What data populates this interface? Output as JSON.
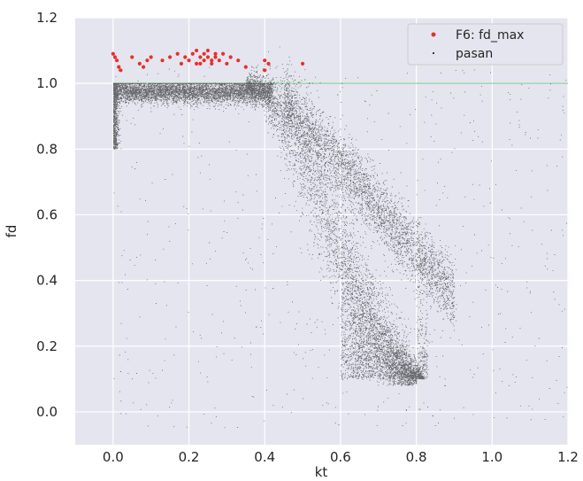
{
  "chart_data": {
    "type": "scatter",
    "title": "",
    "xlabel": "kt",
    "ylabel": "fd",
    "xlim": [
      -0.1,
      1.2
    ],
    "ylim": [
      -0.1,
      1.2
    ],
    "xticks": [
      "0.0",
      "0.2",
      "0.4",
      "0.6",
      "0.8",
      "1.0",
      "1.2"
    ],
    "xtick_values": [
      0.0,
      0.2,
      0.4,
      0.6,
      0.8,
      1.0,
      1.2
    ],
    "yticks": [
      "0.0",
      "0.2",
      "0.4",
      "0.6",
      "0.8",
      "1.0",
      "1.2"
    ],
    "ytick_values": [
      0.0,
      0.2,
      0.4,
      0.6,
      0.8,
      1.0,
      1.2
    ],
    "grid": true,
    "background": "#e5e5ef",
    "legend_position": "top-right",
    "reference_line": {
      "y": 1.0,
      "color": "#6fcf7f"
    },
    "series": [
      {
        "name": "F6: fd_max",
        "color": "#e8302a",
        "points": [
          [
            0.0,
            1.09
          ],
          [
            0.005,
            1.08
          ],
          [
            0.01,
            1.07
          ],
          [
            0.015,
            1.05
          ],
          [
            0.02,
            1.04
          ],
          [
            0.05,
            1.08
          ],
          [
            0.07,
            1.06
          ],
          [
            0.08,
            1.05
          ],
          [
            0.09,
            1.07
          ],
          [
            0.1,
            1.08
          ],
          [
            0.13,
            1.07
          ],
          [
            0.15,
            1.08
          ],
          [
            0.17,
            1.09
          ],
          [
            0.18,
            1.06
          ],
          [
            0.19,
            1.08
          ],
          [
            0.2,
            1.07
          ],
          [
            0.21,
            1.09
          ],
          [
            0.22,
            1.06
          ],
          [
            0.22,
            1.1
          ],
          [
            0.23,
            1.08
          ],
          [
            0.23,
            1.06
          ],
          [
            0.24,
            1.09
          ],
          [
            0.24,
            1.07
          ],
          [
            0.25,
            1.08
          ],
          [
            0.25,
            1.1
          ],
          [
            0.26,
            1.07
          ],
          [
            0.26,
            1.06
          ],
          [
            0.27,
            1.09
          ],
          [
            0.27,
            1.08
          ],
          [
            0.28,
            1.07
          ],
          [
            0.29,
            1.09
          ],
          [
            0.3,
            1.06
          ],
          [
            0.31,
            1.08
          ],
          [
            0.33,
            1.07
          ],
          [
            0.35,
            1.05
          ],
          [
            0.4,
            1.07
          ],
          [
            0.4,
            1.04
          ],
          [
            0.41,
            1.06
          ],
          [
            0.5,
            1.06
          ]
        ]
      },
      {
        "name": "pasan",
        "color": "#000000",
        "description": "dense cloud: ~1.0 plateau for kt 0-0.4, decreasing to ~0.1 at kt 0.8, sparse outliers",
        "points": []
      }
    ]
  }
}
